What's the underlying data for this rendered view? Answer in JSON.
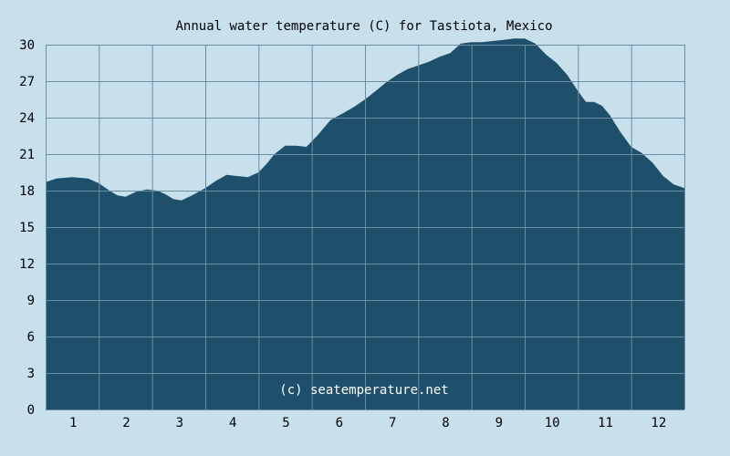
{
  "chart_data": {
    "type": "area",
    "title": "Annual water temperature (C) for Tastiota, Mexico",
    "watermark": "(c) seatemperature.net",
    "xlabel": "",
    "ylabel": "",
    "ylim": [
      0,
      30
    ],
    "y_ticks": [
      "0",
      "3",
      "6",
      "9",
      "12",
      "15",
      "18",
      "21",
      "24",
      "27",
      "30"
    ],
    "x_ticks": [
      "1",
      "2",
      "3",
      "4",
      "5",
      "6",
      "7",
      "8",
      "9",
      "10",
      "11",
      "12"
    ],
    "grid": true,
    "series": [
      {
        "x": [
          0.0,
          0.2,
          0.5,
          0.8,
          1.0,
          1.2,
          1.35,
          1.5,
          1.7,
          1.9,
          2.1,
          2.25,
          2.4,
          2.55,
          2.75,
          3.0,
          3.2,
          3.4,
          3.6,
          3.8,
          4.0,
          4.15,
          4.3,
          4.5,
          4.7,
          4.9,
          5.1,
          5.35,
          5.6,
          5.8,
          6.0,
          6.2,
          6.4,
          6.6,
          6.8,
          7.0,
          7.2,
          7.4,
          7.6,
          7.8,
          8.0,
          8.2,
          8.4,
          8.6,
          8.8,
          9.0,
          9.2,
          9.4,
          9.6,
          9.8,
          10.0,
          10.15,
          10.3,
          10.45,
          10.6,
          10.8,
          11.0,
          11.2,
          11.4,
          11.6,
          11.8,
          12.0
        ],
        "values": [
          18.7,
          19.0,
          19.1,
          19.0,
          18.6,
          18.0,
          17.6,
          17.5,
          17.9,
          18.1,
          18.0,
          17.7,
          17.3,
          17.2,
          17.6,
          18.2,
          18.8,
          19.3,
          19.2,
          19.1,
          19.5,
          20.2,
          21.0,
          21.7,
          21.7,
          21.6,
          22.5,
          23.8,
          24.4,
          24.9,
          25.5,
          26.2,
          26.9,
          27.5,
          28.0,
          28.3,
          28.6,
          29.0,
          29.3,
          30.1,
          30.2,
          30.2,
          30.3,
          30.4,
          30.5,
          30.5,
          30.1,
          29.2,
          28.5,
          27.5,
          26.2,
          25.3,
          25.3,
          25.0,
          24.2,
          22.8,
          21.6,
          21.1,
          20.3,
          19.2,
          18.5,
          18.2
        ]
      }
    ]
  },
  "colors": {
    "background": "#c8e0ec",
    "fill": "#1e4f6b",
    "grid": "#6a8ea4",
    "watermark": "#ffffff"
  }
}
